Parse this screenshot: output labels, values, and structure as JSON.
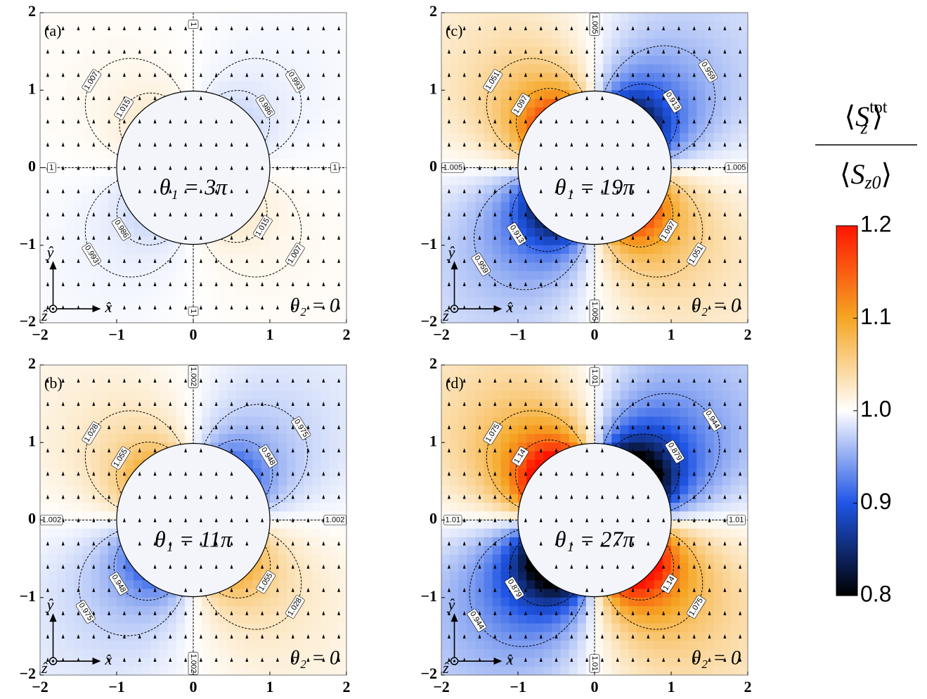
{
  "chart_data": [
    {
      "type": "heatmap",
      "panel_label": "(a)",
      "annotation": "θ₁ = 3π",
      "annotation2": "θ₂ = 0",
      "lobe_levels": [
        1.007,
        1.015,
        0.993,
        0.986
      ],
      "axis_level": 1,
      "xlim": [
        -2,
        2
      ],
      "ylim": [
        -2,
        2
      ],
      "xticks": [
        {
          "value": -2,
          "label": "−2"
        },
        {
          "value": -1,
          "label": "−1"
        },
        0,
        1,
        2
      ],
      "yticks": [
        {
          "value": -2,
          "label": "−2"
        },
        {
          "value": -1,
          "label": "−1"
        },
        0,
        1,
        2
      ]
    },
    {
      "type": "heatmap",
      "panel_label": "(b)",
      "annotation": "θ₁ = 11π",
      "annotation2": "θ₂ = 0",
      "lobe_levels": [
        1.028,
        1.055,
        0.975,
        0.948
      ],
      "axis_level": 1.002,
      "xlim": [
        -2,
        2
      ],
      "ylim": [
        -2,
        2
      ],
      "xticks": [
        {
          "value": -2,
          "label": "−2"
        },
        {
          "value": -1,
          "label": "−1"
        },
        0,
        1,
        2
      ],
      "yticks": [
        {
          "value": -2,
          "label": "−2"
        },
        {
          "value": -1,
          "label": "−1"
        },
        0,
        1,
        2
      ]
    },
    {
      "type": "heatmap",
      "panel_label": "(c)",
      "annotation": "θ₁ = 19π",
      "annotation2": "θ₂ = 0",
      "lobe_levels": [
        1.051,
        1.097,
        0.959,
        0.913
      ],
      "axis_level": 1.005,
      "xlim": [
        -2,
        2
      ],
      "ylim": [
        -2,
        2
      ],
      "xticks": [
        {
          "value": -2,
          "label": "−2"
        },
        {
          "value": -1,
          "label": "−1"
        },
        0,
        1,
        2
      ],
      "yticks": [
        {
          "value": -2,
          "label": "−2"
        },
        {
          "value": -1,
          "label": "−1"
        },
        0,
        1,
        2
      ]
    },
    {
      "type": "heatmap",
      "panel_label": "(d)",
      "annotation": "θ₁ = 27π",
      "annotation2": "θ₂ = 0",
      "lobe_levels": [
        1.075,
        1.14,
        0.944,
        0.879
      ],
      "axis_level": 1.01,
      "xlim": [
        -2,
        2
      ],
      "ylim": [
        -2,
        2
      ],
      "xticks": [
        {
          "value": -2,
          "label": "−2"
        },
        {
          "value": -1,
          "label": "−1"
        },
        0,
        1,
        2
      ],
      "yticks": [
        {
          "value": -2,
          "label": "−2"
        },
        {
          "value": -1,
          "label": "−1"
        },
        0,
        1,
        2
      ]
    },
    {
      "type": "colorbar",
      "lim": [
        0.8,
        1.2
      ],
      "ticks": [
        0.8,
        0.9,
        {
          "value": 1,
          "label": "1.0"
        },
        1.1,
        1.2
      ],
      "colors": [
        "#000000",
        "#1f55e6",
        "#ffffff",
        "#f5a623",
        "#ff1500"
      ],
      "label": {
        "open": "⟨",
        "symbol": "S",
        "num_sup": "tot",
        "num_sub": "z",
        "den_sub": "z0",
        "close": "⟩"
      }
    }
  ],
  "axis_glyph": {
    "x": "x̂",
    "y": "ŷ",
    "z": "ẑ"
  }
}
